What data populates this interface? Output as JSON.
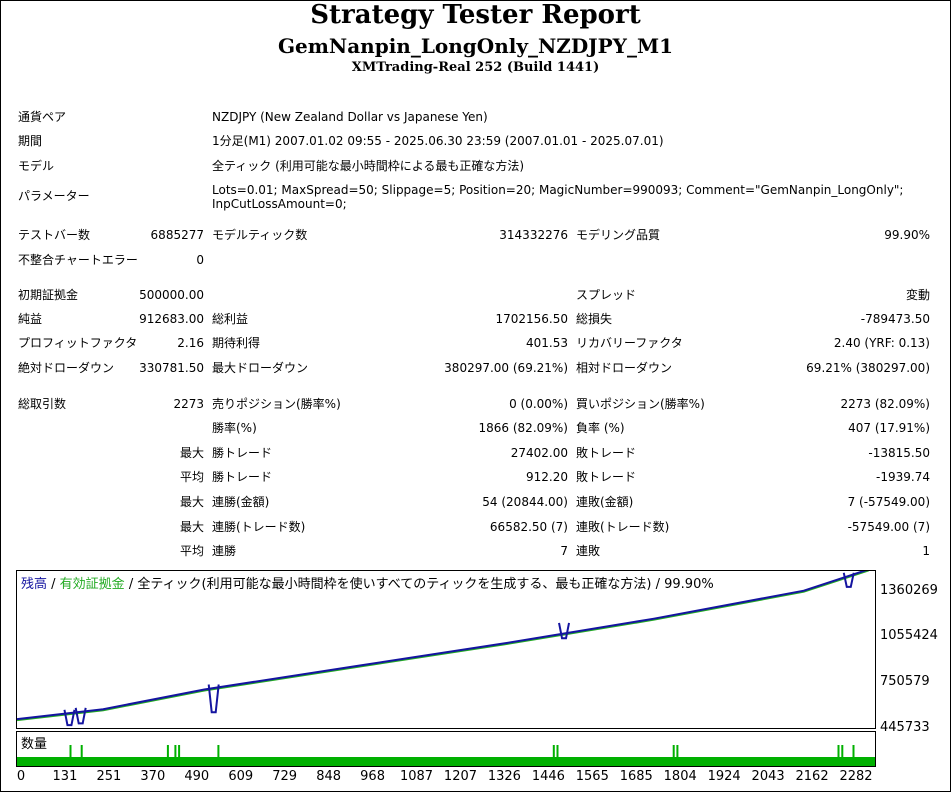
{
  "header": {
    "title": "Strategy Tester Report",
    "expert": "GemNanpin_LongOnly_NZDJPY_M1",
    "server": "XMTrading-Real 252 (Build 1441)"
  },
  "info": {
    "symbol_label": "通貨ペア",
    "symbol_value": "NZDJPY (New Zealand Dollar vs Japanese Yen)",
    "period_label": "期間",
    "period_value": "1分足(M1) 2007.01.02 09:55 - 2025.06.30 23:59 (2007.01.01 - 2025.07.01)",
    "model_label": "モデル",
    "model_value": "全ティック (利用可能な最小時間枠による最も正確な方法)",
    "params_label": "パラメーター",
    "params_line1": "Lots=0.01; MaxSpread=50; Slippage=5; Position=20; MagicNumber=990093; Comment=\"GemNanpin_LongOnly\";",
    "params_line2": "InpCutLossAmount=0;"
  },
  "stats": {
    "bars_label": "テストバー数",
    "bars_value": "6885277",
    "ticks_label": "モデルティック数",
    "ticks_value": "314332276",
    "quality_label": "モデリング品質",
    "quality_value": "99.90%",
    "mismatch_label": "不整合チャートエラー",
    "mismatch_value": "0",
    "deposit_label": "初期証拠金",
    "deposit_value": "500000.00",
    "spread_label": "スプレッド",
    "spread_value": "変動",
    "net_label": "純益",
    "net_value": "912683.00",
    "gross_profit_label": "総利益",
    "gross_profit_value": "1702156.50",
    "gross_loss_label": "総損失",
    "gross_loss_value": "-789473.50",
    "pf_label": "プロフィットファクタ",
    "pf_value": "2.16",
    "payoff_label": "期待利得",
    "payoff_value": "401.53",
    "rf_label": "リカバリーファクタ",
    "rf_value": "2.40 (YRF: 0.13)",
    "abs_dd_label": "絶対ドローダウン",
    "abs_dd_value": "330781.50",
    "max_dd_label": "最大ドローダウン",
    "max_dd_value": "380297.00 (69.21%)",
    "rel_dd_label": "相対ドローダウン",
    "rel_dd_value": "69.21% (380297.00)",
    "trades_label": "総取引数",
    "trades_value": "2273",
    "short_label": "売りポジション(勝率%)",
    "short_value": "0 (0.00%)",
    "long_label": "買いポジション(勝率%)",
    "long_value": "2273 (82.09%)",
    "winrate_label": "勝率(%)",
    "winrate_value": "1866 (82.09%)",
    "lossrate_label": "負率 (%)",
    "lossrate_value": "407 (17.91%)",
    "max_label": "最大",
    "avg_label": "平均",
    "win_trade_label": "勝トレード",
    "lose_trade_label": "敗トレード",
    "max_win_value": "27402.00",
    "max_loss_value": "-13815.50",
    "avg_win_value": "912.20",
    "avg_loss_value": "-1939.74",
    "cons_win_money_label": "連勝(金額)",
    "cons_win_money_value": "54 (20844.00)",
    "cons_loss_money_label": "連敗(金額)",
    "cons_loss_money_value": "7 (-57549.00)",
    "cons_win_count_label": "連勝(トレード数)",
    "cons_win_count_value": "66582.50 (7)",
    "cons_loss_count_label": "連敗(トレード数)",
    "cons_loss_count_value": "-57549.00 (7)",
    "avg_cons_win_label": "連勝",
    "avg_cons_win_value": "7",
    "avg_cons_loss_label": "連敗",
    "avg_cons_loss_value": "1"
  },
  "chart_data": {
    "type": "line",
    "legend_balance": "残高",
    "legend_sep": " / ",
    "legend_equity": "有効証拠金",
    "legend_rest": " / 全ティック(利用可能な最小時間枠を使いすべてのティックを生成する、最も正確な方法) / 99.90%",
    "volume_label": "数量",
    "yticks": [
      "1360269",
      "1055424",
      "750579",
      "445733"
    ],
    "ytick_values": [
      1360269,
      1055424,
      750579,
      445733
    ],
    "xticks": [
      "0",
      "131",
      "251",
      "370",
      "490",
      "609",
      "729",
      "848",
      "968",
      "1087",
      "1207",
      "1326",
      "1446",
      "1565",
      "1685",
      "1804",
      "1924",
      "2043",
      "2162",
      "2282"
    ],
    "xlim": [
      0,
      2290
    ],
    "ylim": [
      445733,
      1400000
    ],
    "balance": {
      "x": [
        0,
        230,
        500,
        900,
        1300,
        1700,
        2100,
        2273
      ],
      "y": [
        500000,
        560000,
        680000,
        820000,
        960000,
        1110000,
        1280000,
        1410000
      ]
    },
    "equity_dips": [
      {
        "x": 140,
        "y": 500000
      },
      {
        "x": 170,
        "y": 510000
      },
      {
        "x": 525,
        "y": 578000
      },
      {
        "x": 1460,
        "y": 1028000
      },
      {
        "x": 2220,
        "y": 1340000
      }
    ],
    "volume_spikes": [
      140,
      170,
      400,
      420,
      430,
      535,
      1430,
      1440,
      1750,
      1760,
      2190,
      2200,
      2230
    ],
    "colors": {
      "balance": "#1414a0",
      "equity": "#22aa22",
      "volume": "#00b000"
    }
  }
}
